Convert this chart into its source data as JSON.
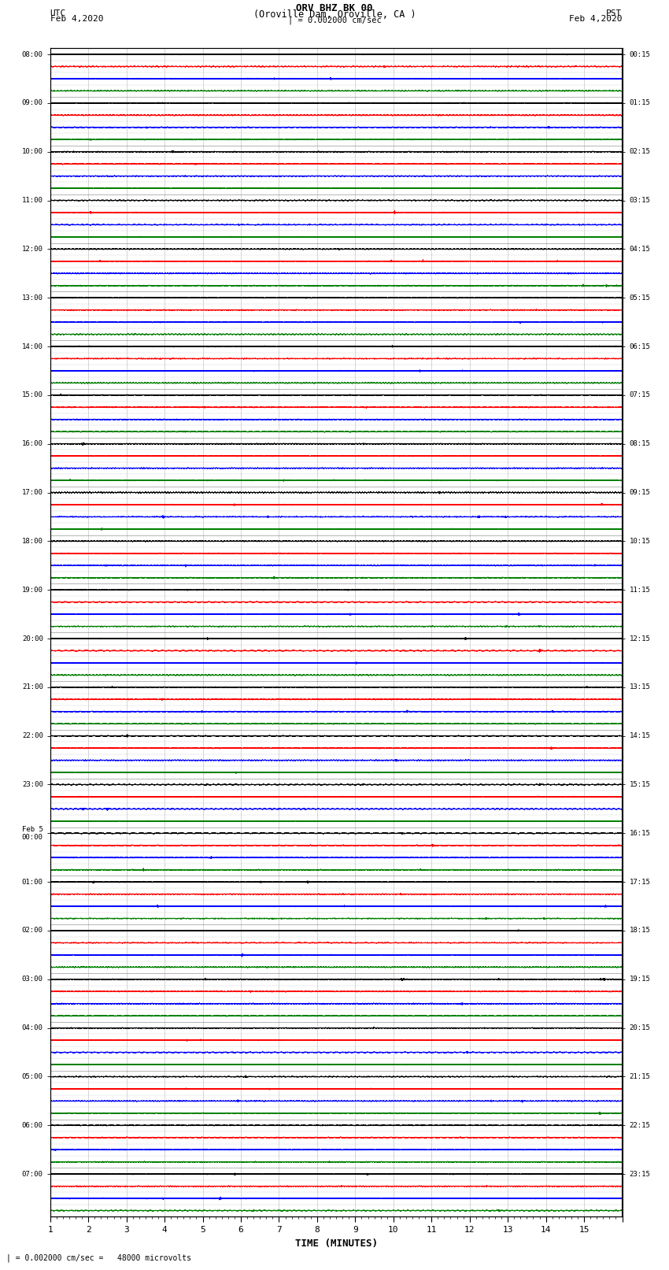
{
  "title_line1": "ORV BHZ BK 00",
  "title_line2": "(Oroville Dam, Oroville, CA )",
  "scale_label": "| = 0.002000 cm/sec",
  "left_timezone": "UTC",
  "left_date": "Feb 4,2020",
  "right_timezone": "PST",
  "right_date": "Feb 4,2020",
  "xlabel": "TIME (MINUTES)",
  "bottom_note": "= 0.002000 cm/sec =   48000 microvolts",
  "utc_labels": [
    "08:00",
    "09:00",
    "10:00",
    "11:00",
    "12:00",
    "13:00",
    "14:00",
    "15:00",
    "16:00",
    "17:00",
    "18:00",
    "19:00",
    "20:00",
    "21:00",
    "22:00",
    "23:00",
    "Feb 5\n00:00",
    "01:00",
    "02:00",
    "03:00",
    "04:00",
    "05:00",
    "06:00",
    "07:00"
  ],
  "pst_labels": [
    "00:15",
    "01:15",
    "02:15",
    "03:15",
    "04:15",
    "05:15",
    "06:15",
    "07:15",
    "08:15",
    "09:15",
    "10:15",
    "11:15",
    "12:15",
    "13:15",
    "14:15",
    "15:15",
    "16:15",
    "17:15",
    "18:15",
    "19:15",
    "20:15",
    "21:15",
    "22:15",
    "23:15"
  ],
  "trace_colors": [
    "black",
    "red",
    "blue",
    "green"
  ],
  "n_hours": 24,
  "n_minutes": 15,
  "sample_rate": 40,
  "background_color": "white",
  "trace_amplitude": 0.28,
  "noise_scale": 0.12
}
